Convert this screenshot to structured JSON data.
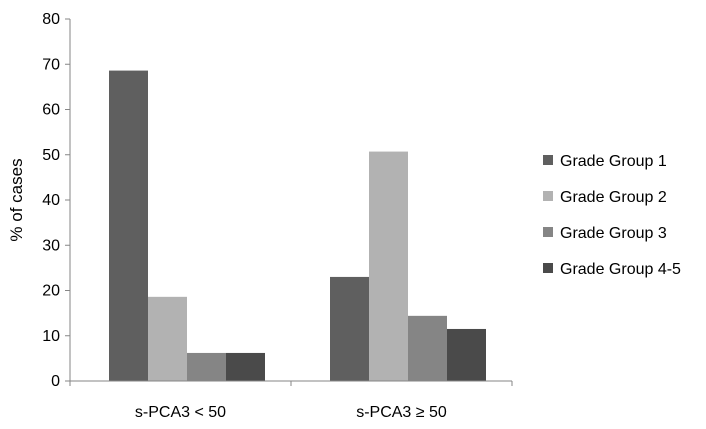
{
  "chart_data": {
    "type": "bar",
    "title": "",
    "xlabel": "",
    "ylabel": "% of cases",
    "ylim": [
      0,
      80
    ],
    "ytick_step": 10,
    "yticks": [
      "0",
      "10",
      "20",
      "30",
      "40",
      "50",
      "60",
      "70",
      "80"
    ],
    "grid": false,
    "legend_position": "right",
    "categories": [
      "s-PCA3 < 50",
      "s-PCA3 ≥ 50"
    ],
    "series": [
      {
        "name": "Grade Group 1",
        "color": "#5f5f5f",
        "values": [
          68.6,
          23.0
        ]
      },
      {
        "name": "Grade Group 2",
        "color": "#b2b2b2",
        "values": [
          18.6,
          50.7
        ]
      },
      {
        "name": "Grade Group 3",
        "color": "#858585",
        "values": [
          6.2,
          14.4
        ]
      },
      {
        "name": "Grade Group 4-5",
        "color": "#4a4a4a",
        "values": [
          6.2,
          11.5
        ]
      }
    ]
  }
}
